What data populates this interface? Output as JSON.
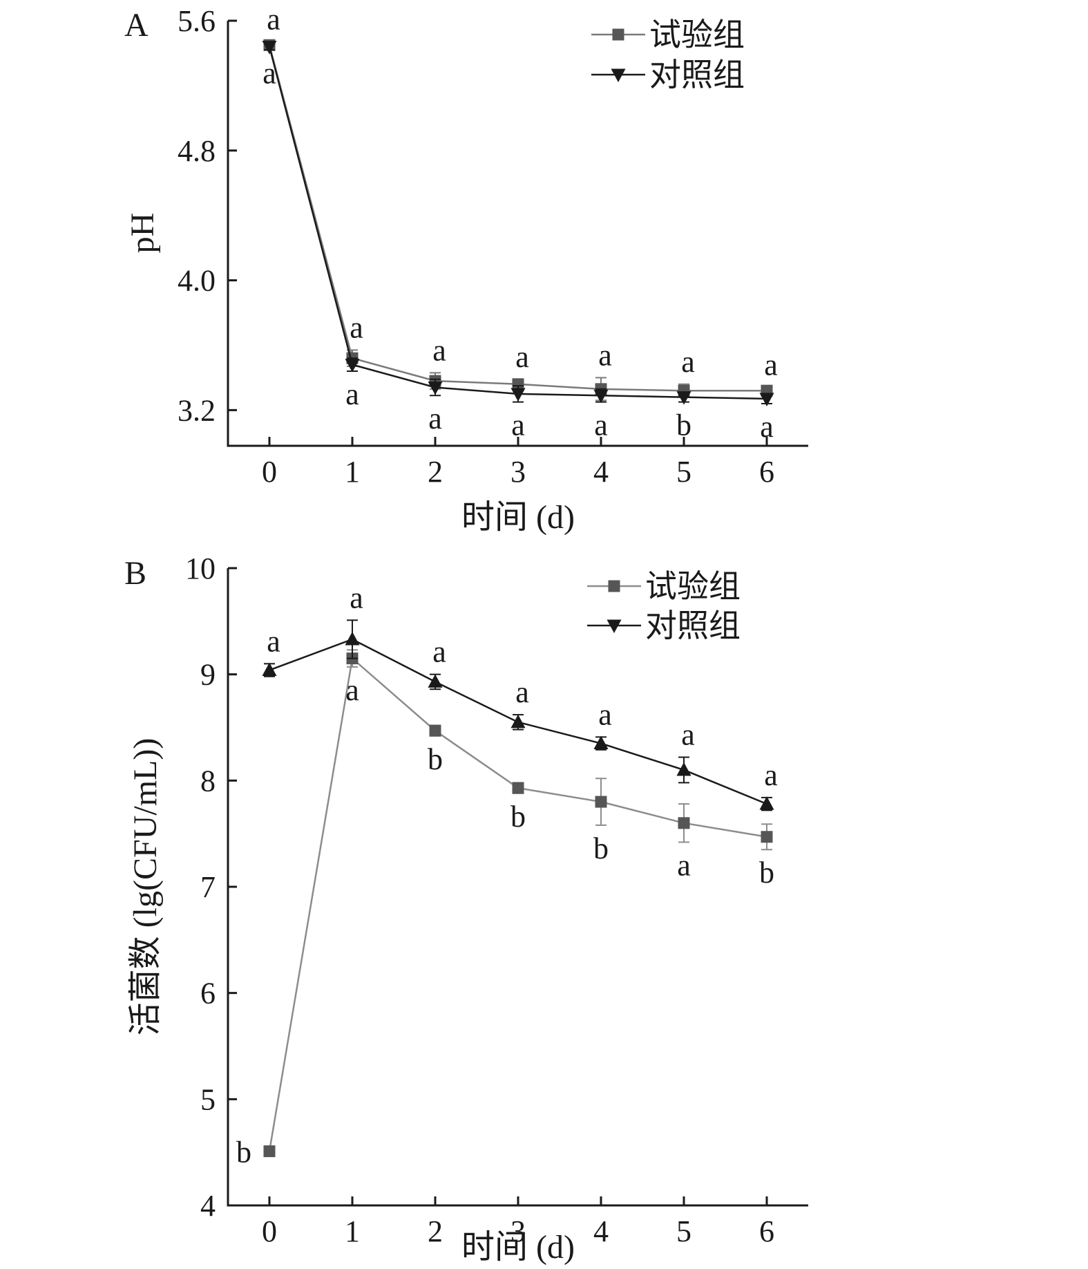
{
  "figure": {
    "background": "#ffffff",
    "text_color": "#1a1a1a",
    "chart_data": [
      {
        "panel_label": "A",
        "type": "line",
        "title": "",
        "xlabel": "时间 (d)",
        "ylabel": "pH",
        "xlim": [
          -0.5,
          6.5
        ],
        "ylim": [
          2.98,
          5.6
        ],
        "xticks": [
          0,
          1,
          2,
          3,
          4,
          5,
          6
        ],
        "yticks": [
          3.2,
          4.0,
          4.8,
          5.6
        ],
        "ytick_decimals": 1,
        "grid": false,
        "legend_position": "top-right",
        "x": [
          0,
          1,
          2,
          3,
          4,
          5,
          6
        ],
        "series": [
          {
            "name": "试验组",
            "marker": "square",
            "color": "#7a7a7a",
            "marker_color": "#565656",
            "values": [
              5.45,
              3.52,
              3.38,
              3.36,
              3.33,
              3.32,
              3.32
            ],
            "errors": [
              0.02,
              0.05,
              0.05,
              0.03,
              0.07,
              0.04,
              0.02
            ],
            "point_labels": [
              "a",
              "a",
              "a",
              "a",
              "a",
              "a",
              "a"
            ],
            "label_sides": [
              "above",
              "above",
              "above",
              "above",
              "above",
              "above",
              "above"
            ]
          },
          {
            "name": "对照组",
            "marker": "triangle-down",
            "color": "#1a1a1a",
            "marker_color": "#1a1a1a",
            "values": [
              5.44,
              3.48,
              3.34,
              3.3,
              3.29,
              3.28,
              3.27
            ],
            "errors": [
              0.02,
              0.04,
              0.05,
              0.05,
              0.04,
              0.03,
              0.03
            ],
            "point_labels": [
              "a",
              "a",
              "a",
              "a",
              "a",
              "b",
              "a"
            ],
            "label_sides": [
              "below",
              "below",
              "below",
              "below",
              "below",
              "below",
              "below"
            ]
          }
        ]
      },
      {
        "panel_label": "B",
        "type": "line",
        "title": "",
        "xlabel": "时间 (d)",
        "ylabel": "活菌数 (lg(CFU/mL))",
        "xlim": [
          -0.5,
          6.5
        ],
        "ylim": [
          4,
          10
        ],
        "xticks": [
          0,
          1,
          2,
          3,
          4,
          5,
          6
        ],
        "yticks": [
          4,
          5,
          6,
          7,
          8,
          9,
          10
        ],
        "ytick_decimals": 0,
        "grid": false,
        "legend_position": "top-right",
        "x": [
          0,
          1,
          2,
          3,
          4,
          5,
          6
        ],
        "series": [
          {
            "name": "试验组",
            "marker": "square",
            "legend_marker": "square",
            "color": "#8c8c8c",
            "marker_color": "#565656",
            "values": [
              4.51,
              9.15,
              8.47,
              7.93,
              7.8,
              7.6,
              7.47
            ],
            "errors": [
              0.03,
              0.08,
              0.05,
              0.05,
              0.22,
              0.18,
              0.12
            ],
            "point_labels": [
              "b",
              "a",
              "b",
              "b",
              "b",
              "a",
              "b"
            ],
            "label_sides": [
              "left",
              "below",
              "below",
              "below",
              "below",
              "below",
              "below"
            ]
          },
          {
            "name": "对照组",
            "marker": "triangle-up",
            "legend_marker": "triangle-down",
            "color": "#1a1a1a",
            "marker_color": "#1a1a1a",
            "values": [
              9.04,
              9.33,
              8.93,
              8.55,
              8.35,
              8.1,
              7.78
            ],
            "errors": [
              0.06,
              0.18,
              0.07,
              0.07,
              0.06,
              0.12,
              0.06
            ],
            "point_labels": [
              "a",
              "a",
              "a",
              "a",
              "a",
              "a",
              "a"
            ],
            "label_sides": [
              "above",
              "above",
              "above",
              "above",
              "above",
              "above",
              "above"
            ]
          }
        ]
      }
    ]
  }
}
